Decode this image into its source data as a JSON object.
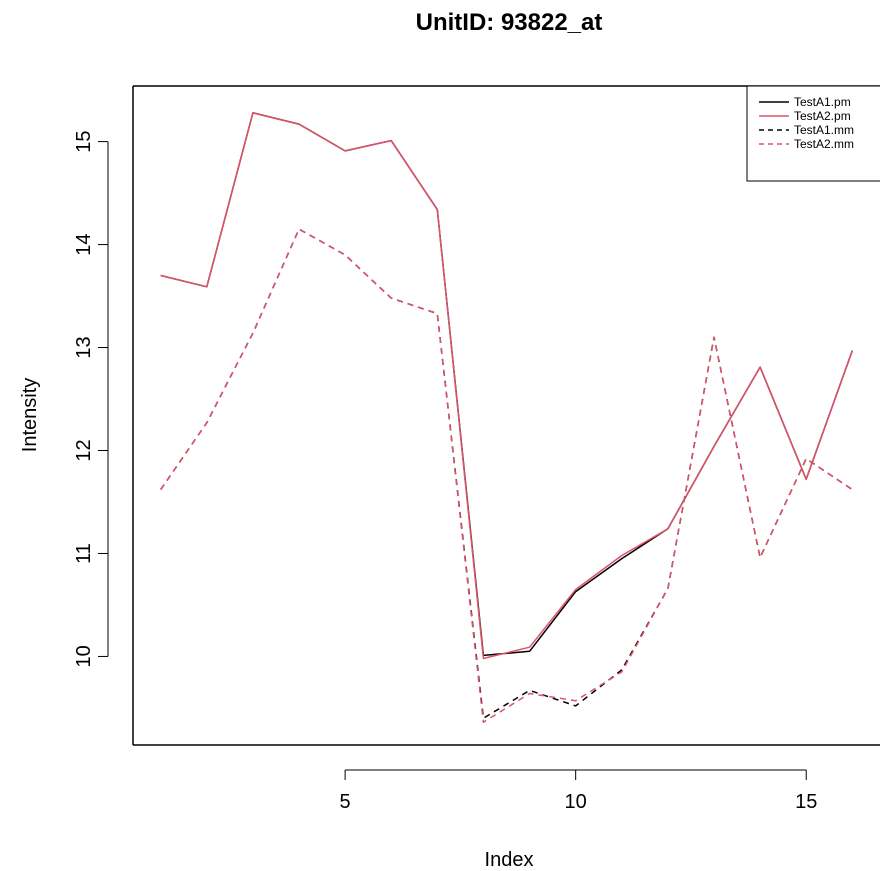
{
  "chart_data": {
    "type": "line",
    "title": "UnitID: 93822_at",
    "xlabel": "Index",
    "ylabel": "Intensity",
    "xlim": [
      0.4,
      16.6
    ],
    "ylim": [
      9.14,
      15.54
    ],
    "xticks": [
      5,
      10,
      15
    ],
    "yticks": [
      10,
      11,
      12,
      13,
      14,
      15
    ],
    "grid": false,
    "legend_position": "top-right",
    "x": [
      1,
      2,
      3,
      4,
      5,
      6,
      7,
      8,
      9,
      10,
      11,
      12,
      13,
      14,
      15,
      16
    ],
    "series": [
      {
        "name": "TestA1.pm",
        "color": "#000000",
        "dash": "solid",
        "values": [
          13.7,
          13.59,
          15.28,
          15.17,
          14.91,
          15.01,
          14.34,
          10.01,
          10.05,
          10.63,
          10.95,
          11.24,
          12.04,
          12.81,
          11.72,
          12.97
        ]
      },
      {
        "name": "TestA2.pm",
        "color": "#DF536B",
        "dash": "solid",
        "values": [
          13.7,
          13.59,
          15.28,
          15.17,
          14.91,
          15.01,
          14.34,
          9.98,
          10.09,
          10.65,
          10.98,
          11.24,
          12.04,
          12.81,
          11.72,
          12.97
        ]
      },
      {
        "name": "TestA1.mm",
        "color": "#000000",
        "dash": "dashed",
        "values": [
          11.62,
          12.27,
          13.14,
          14.15,
          13.9,
          13.48,
          13.33,
          9.4,
          9.67,
          9.52,
          9.87,
          10.66,
          13.1,
          10.96,
          11.92,
          11.62
        ]
      },
      {
        "name": "TestA2.mm",
        "color": "#DF536B",
        "dash": "dashed",
        "values": [
          11.62,
          12.27,
          13.14,
          14.15,
          13.9,
          13.48,
          13.33,
          9.36,
          9.64,
          9.57,
          9.85,
          10.66,
          13.1,
          10.96,
          11.92,
          11.62
        ]
      }
    ]
  }
}
